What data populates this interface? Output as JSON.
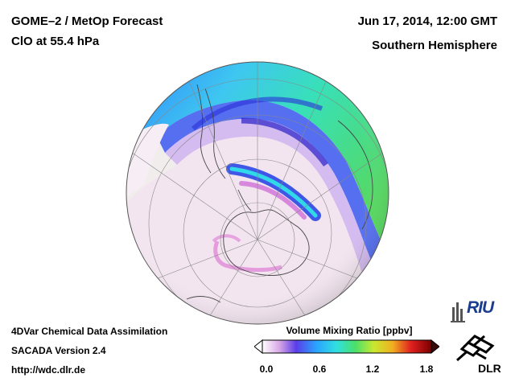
{
  "header": {
    "title_line1": "GOME–2 / MetOp Forecast",
    "title_line2": "ClO at 55.4 hPa",
    "date": "Jun 17, 2014, 12:00 GMT",
    "region": "Southern Hemisphere"
  },
  "footer": {
    "line1": "4DVar Chemical Data Assimilation",
    "line2": "SACADA Version 2.4",
    "line3": "http://wdc.dlr.de"
  },
  "colorbar": {
    "title": "Volume Mixing Ratio [ppbv]",
    "ticks": [
      "0.0",
      "0.6",
      "1.2",
      "1.8"
    ],
    "range": [
      0,
      1.8
    ],
    "colors": [
      "#ffffff",
      "#d9a8e6",
      "#5a3ee8",
      "#2aa4ff",
      "#30e0e0",
      "#4ae06a",
      "#c9e830",
      "#f0b020",
      "#e02020",
      "#7a0000"
    ]
  },
  "logos": {
    "riu_text": "RIU",
    "dlr_text": "DLR"
  },
  "map": {
    "projection": "orthographic",
    "center": "south-pole"
  }
}
